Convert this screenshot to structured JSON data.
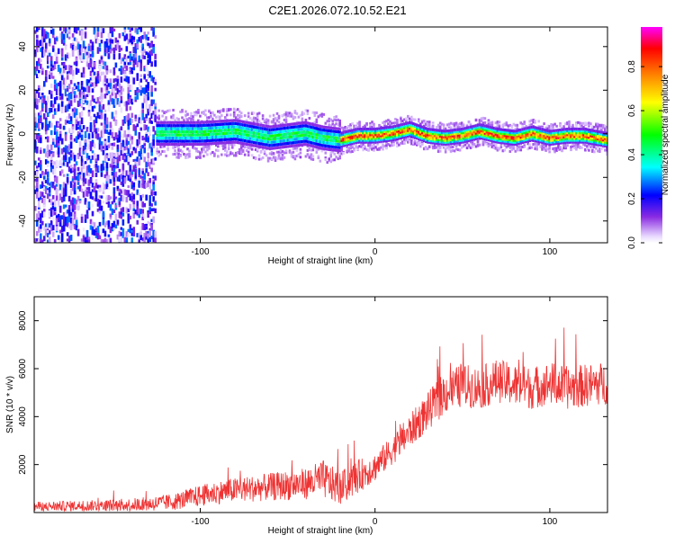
{
  "title": "C2E1.2026.072.10.52.E21",
  "colorbar_label": "Normalized spectral amplitude",
  "chart_data": [
    {
      "type": "heatmap",
      "xlabel": "Height of straight line (km)",
      "ylabel": "Frequency (Hz)",
      "xlim": [
        -195,
        133
      ],
      "ylim": [
        -50,
        49
      ],
      "xticks": [
        "-100",
        "0",
        "100"
      ],
      "yticks": [
        "-40",
        "-20",
        "0",
        "20",
        "40"
      ],
      "colorbar": {
        "range": [
          0,
          0.98
        ],
        "ticks": [
          "0.0",
          "0.2",
          "0.4",
          "0.6",
          "0.8"
        ],
        "colormap": [
          "#ffffff",
          "#8a2be2",
          "#0000ff",
          "#00ffff",
          "#00ff00",
          "#ffff00",
          "#ff8000",
          "#ff0000",
          "#ff00ff"
        ]
      },
      "ridge": {
        "x": [
          -195,
          -120,
          -100,
          -80,
          -60,
          -40,
          -30,
          -20,
          -10,
          0,
          10,
          20,
          30,
          40,
          50,
          60,
          70,
          80,
          90,
          100,
          110,
          120,
          133
        ],
        "y": [
          0,
          0,
          0,
          1,
          -2,
          0,
          -2,
          -3,
          -1,
          -1,
          0,
          2,
          -1,
          -2,
          -1,
          1,
          -1,
          -2,
          0,
          -2,
          -1,
          -1,
          -3
        ]
      },
      "regions": [
        {
          "x": [
            -195,
            -125
          ],
          "level": 0.3,
          "spread": 49
        },
        {
          "x": [
            -125,
            -20
          ],
          "level": 0.45,
          "spread": 5
        },
        {
          "x": [
            -20,
            133
          ],
          "level": 0.85,
          "spread": 3
        }
      ]
    },
    {
      "type": "line",
      "xlabel": "Height of straight line (km)",
      "ylabel": "SNR (10 * v/v)",
      "xlim": [
        -195,
        133
      ],
      "ylim": [
        0,
        9000
      ],
      "xticks": [
        "-100",
        "0",
        "100"
      ],
      "yticks": [
        "2000",
        "4000",
        "6000",
        "8000"
      ],
      "color": "#ee3333",
      "x": [
        -195,
        -170,
        -150,
        -130,
        -115,
        -100,
        -85,
        -70,
        -55,
        -40,
        -30,
        -20,
        -10,
        0,
        10,
        20,
        30,
        40,
        50,
        60,
        70,
        80,
        90,
        100,
        110,
        120,
        133
      ],
      "y": [
        250,
        280,
        300,
        350,
        450,
        700,
        900,
        1000,
        1100,
        1200,
        1400,
        1000,
        1500,
        1900,
        2600,
        3400,
        4200,
        5000,
        5300,
        5200,
        5500,
        5300,
        5200,
        5400,
        5200,
        5300,
        5400
      ],
      "noise": [
        200,
        220,
        250,
        300,
        350,
        450,
        500,
        550,
        600,
        650,
        800,
        700,
        700,
        600,
        600,
        700,
        800,
        900,
        900,
        900,
        900,
        900,
        900,
        900,
        900,
        900,
        900
      ]
    }
  ]
}
